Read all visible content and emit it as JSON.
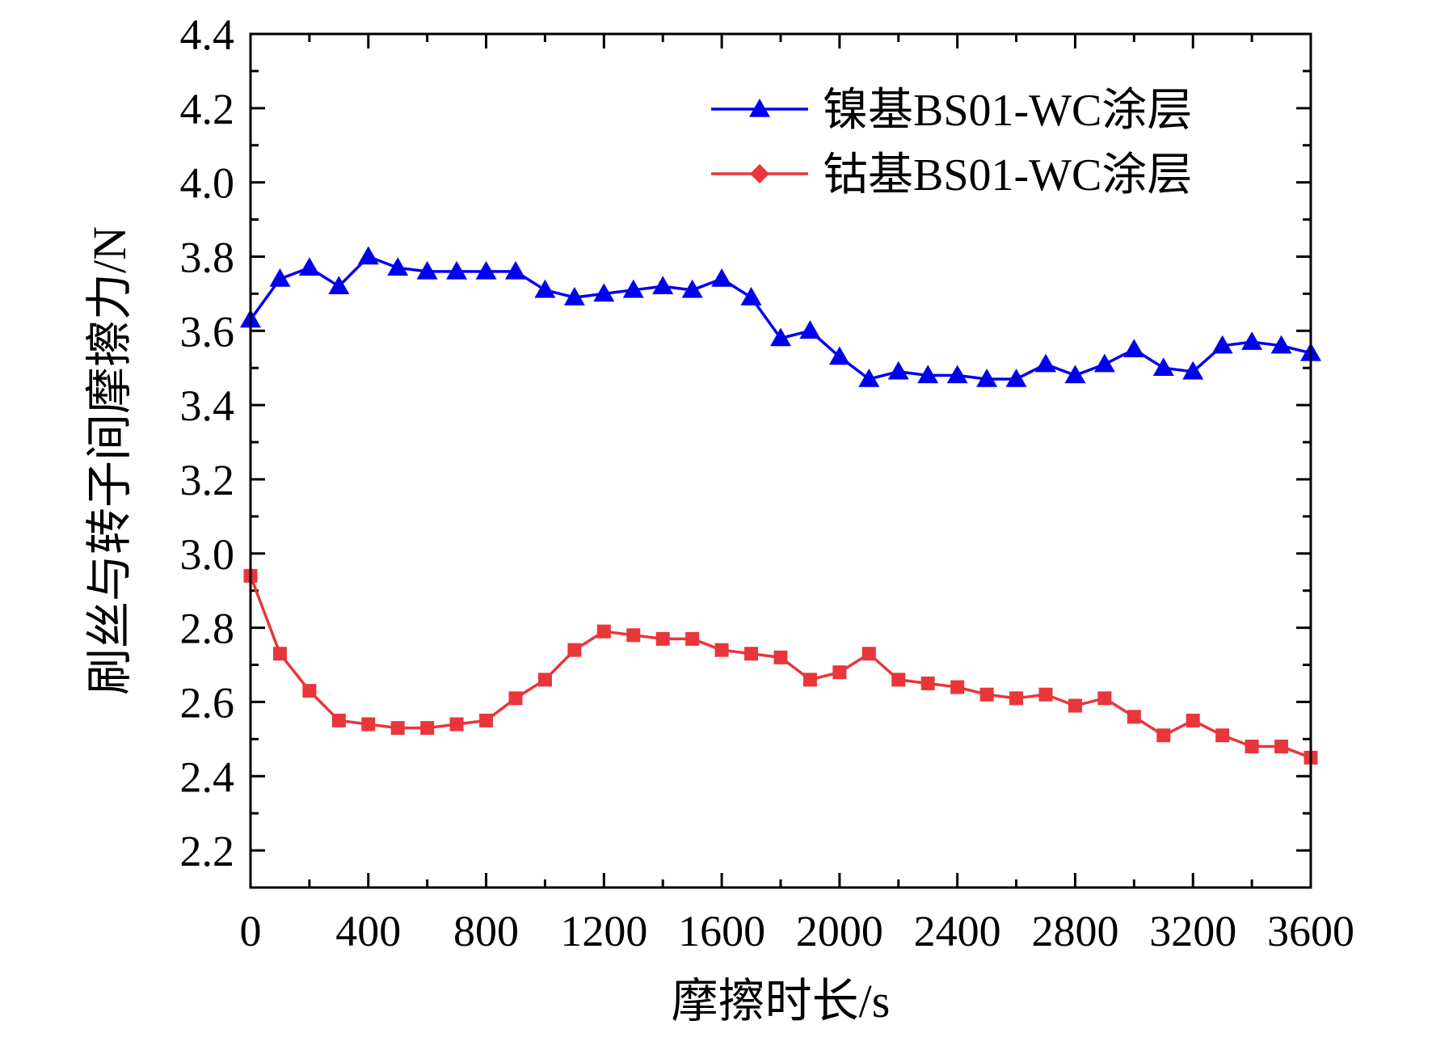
{
  "chart_data": {
    "type": "line",
    "xlabel": "摩擦时长/s",
    "ylabel": "刷丝与转子间摩擦力/N",
    "xlim": [
      0,
      3600
    ],
    "ylim": [
      2.1,
      4.4
    ],
    "xticks": [
      0,
      400,
      800,
      1200,
      1600,
      2000,
      2400,
      2800,
      3200,
      3600
    ],
    "xtick_labels": [
      "0",
      "400",
      "800",
      "1200",
      "1600",
      "2000",
      "2400",
      "2800",
      "3200",
      "3600"
    ],
    "yticks": [
      2.2,
      2.4,
      2.6,
      2.8,
      3.0,
      3.2,
      3.4,
      3.6,
      3.8,
      4.0,
      4.2,
      4.4
    ],
    "ytick_labels": [
      "2.2",
      "2.4",
      "2.6",
      "2.8",
      "3.0",
      "3.2",
      "3.4",
      "3.6",
      "3.8",
      "4.0",
      "4.2",
      "4.4"
    ],
    "grid": false,
    "legend_position": "top-right",
    "x": [
      0,
      100,
      200,
      300,
      400,
      500,
      600,
      700,
      800,
      900,
      1000,
      1100,
      1200,
      1300,
      1400,
      1500,
      1600,
      1700,
      1800,
      1900,
      2000,
      2100,
      2200,
      2300,
      2400,
      2500,
      2600,
      2700,
      2800,
      2900,
      3000,
      3100,
      3200,
      3300,
      3400,
      3500,
      3600
    ],
    "series": [
      {
        "name": "镍基BS01-WC涂层",
        "color": "#0000ee",
        "marker": "triangle",
        "values": [
          3.63,
          3.74,
          3.77,
          3.72,
          3.8,
          3.77,
          3.76,
          3.76,
          3.76,
          3.76,
          3.71,
          3.69,
          3.7,
          3.71,
          3.72,
          3.71,
          3.74,
          3.69,
          3.58,
          3.6,
          3.53,
          3.47,
          3.49,
          3.48,
          3.48,
          3.47,
          3.47,
          3.51,
          3.48,
          3.51,
          3.55,
          3.5,
          3.49,
          3.56,
          3.57,
          3.56,
          3.54
        ]
      },
      {
        "name": "钴基BS01-WC涂层",
        "color": "#e8363a",
        "legend_marker": "diamond",
        "marker": "square",
        "values": [
          2.94,
          2.73,
          2.63,
          2.55,
          2.54,
          2.53,
          2.53,
          2.54,
          2.55,
          2.61,
          2.66,
          2.74,
          2.79,
          2.78,
          2.77,
          2.77,
          2.74,
          2.73,
          2.72,
          2.66,
          2.68,
          2.73,
          2.66,
          2.65,
          2.64,
          2.62,
          2.61,
          2.62,
          2.59,
          2.61,
          2.56,
          2.51,
          2.55,
          2.51,
          2.48,
          2.48,
          2.45
        ]
      }
    ]
  }
}
